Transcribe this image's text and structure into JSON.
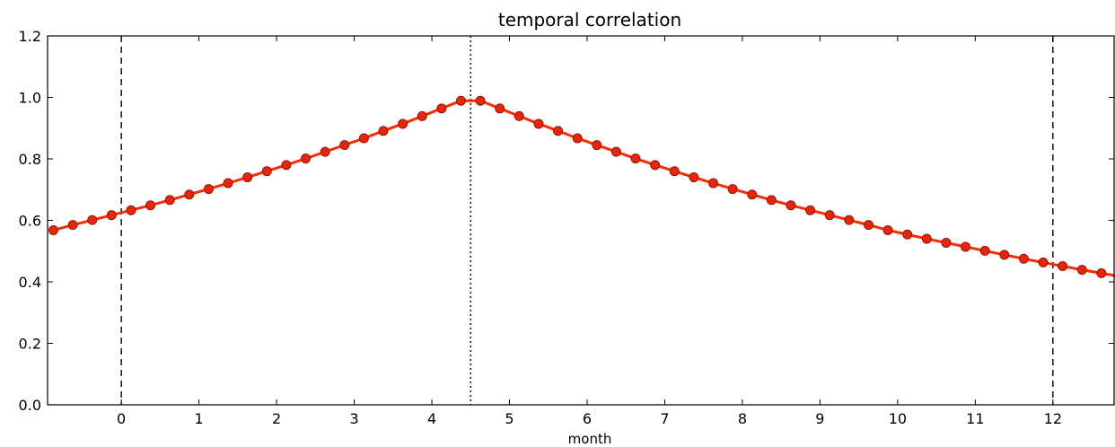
{
  "chart_data": {
    "type": "line",
    "title": "temporal correlation",
    "xlabel": "month",
    "ylabel": "",
    "xlim": [
      -0.95,
      12.8
    ],
    "ylim": [
      0.0,
      1.2
    ],
    "grid": false,
    "x_ticks": [
      0,
      1,
      2,
      3,
      4,
      5,
      6,
      7,
      8,
      9,
      10,
      11,
      12
    ],
    "x_tick_labels": [
      "0",
      "1",
      "2",
      "3",
      "4",
      "5",
      "6",
      "7",
      "8",
      "9",
      "10",
      "11",
      "12"
    ],
    "y_ticks": [
      0.0,
      0.2,
      0.4,
      0.6,
      0.8,
      1.0,
      1.2
    ],
    "y_tick_labels": [
      "0.0",
      "0.2",
      "0.4",
      "0.6",
      "0.8",
      "1.0",
      "1.2"
    ],
    "reference_lines": [
      {
        "x": 0,
        "style": "dashed",
        "color": "#000000"
      },
      {
        "x": 4.5,
        "style": "dotted",
        "color": "#000000"
      },
      {
        "x": 12,
        "style": "dashed",
        "color": "#000000"
      }
    ],
    "colors": {
      "line": "#ff2a00",
      "marker_fill": "#e8250c",
      "marker_edge": "#8a1a0a",
      "axes": "#000000"
    },
    "series": [
      {
        "x": [
          -0.875,
          -0.625,
          -0.375,
          -0.125,
          0.125,
          0.375,
          0.625,
          0.875,
          1.125,
          1.375,
          1.625,
          1.875,
          2.125,
          2.375,
          2.625,
          2.875,
          3.125,
          3.375,
          3.625,
          3.875,
          4.125,
          4.375,
          4.625,
          4.875,
          5.125,
          5.375,
          5.625,
          5.875,
          6.125,
          6.375,
          6.625,
          6.875,
          7.125,
          7.375,
          7.625,
          7.875,
          8.125,
          8.375,
          8.625,
          8.875,
          9.125,
          9.375,
          9.625,
          9.875,
          10.125,
          10.375,
          10.625,
          10.875,
          11.125,
          11.375,
          11.625,
          11.875,
          12.125,
          12.375,
          12.625
        ],
        "values": [
          0.568,
          0.585,
          0.601,
          0.617,
          0.633,
          0.649,
          0.666,
          0.684,
          0.702,
          0.721,
          0.74,
          0.76,
          0.78,
          0.801,
          0.823,
          0.845,
          0.867,
          0.891,
          0.914,
          0.939,
          0.964,
          0.989,
          0.989,
          0.964,
          0.939,
          0.914,
          0.891,
          0.867,
          0.845,
          0.823,
          0.801,
          0.78,
          0.76,
          0.74,
          0.721,
          0.702,
          0.684,
          0.666,
          0.649,
          0.633,
          0.617,
          0.601,
          0.585,
          0.568,
          0.554,
          0.54,
          0.527,
          0.514,
          0.501,
          0.488,
          0.475,
          0.463,
          0.451,
          0.439,
          0.428
        ]
      }
    ]
  }
}
